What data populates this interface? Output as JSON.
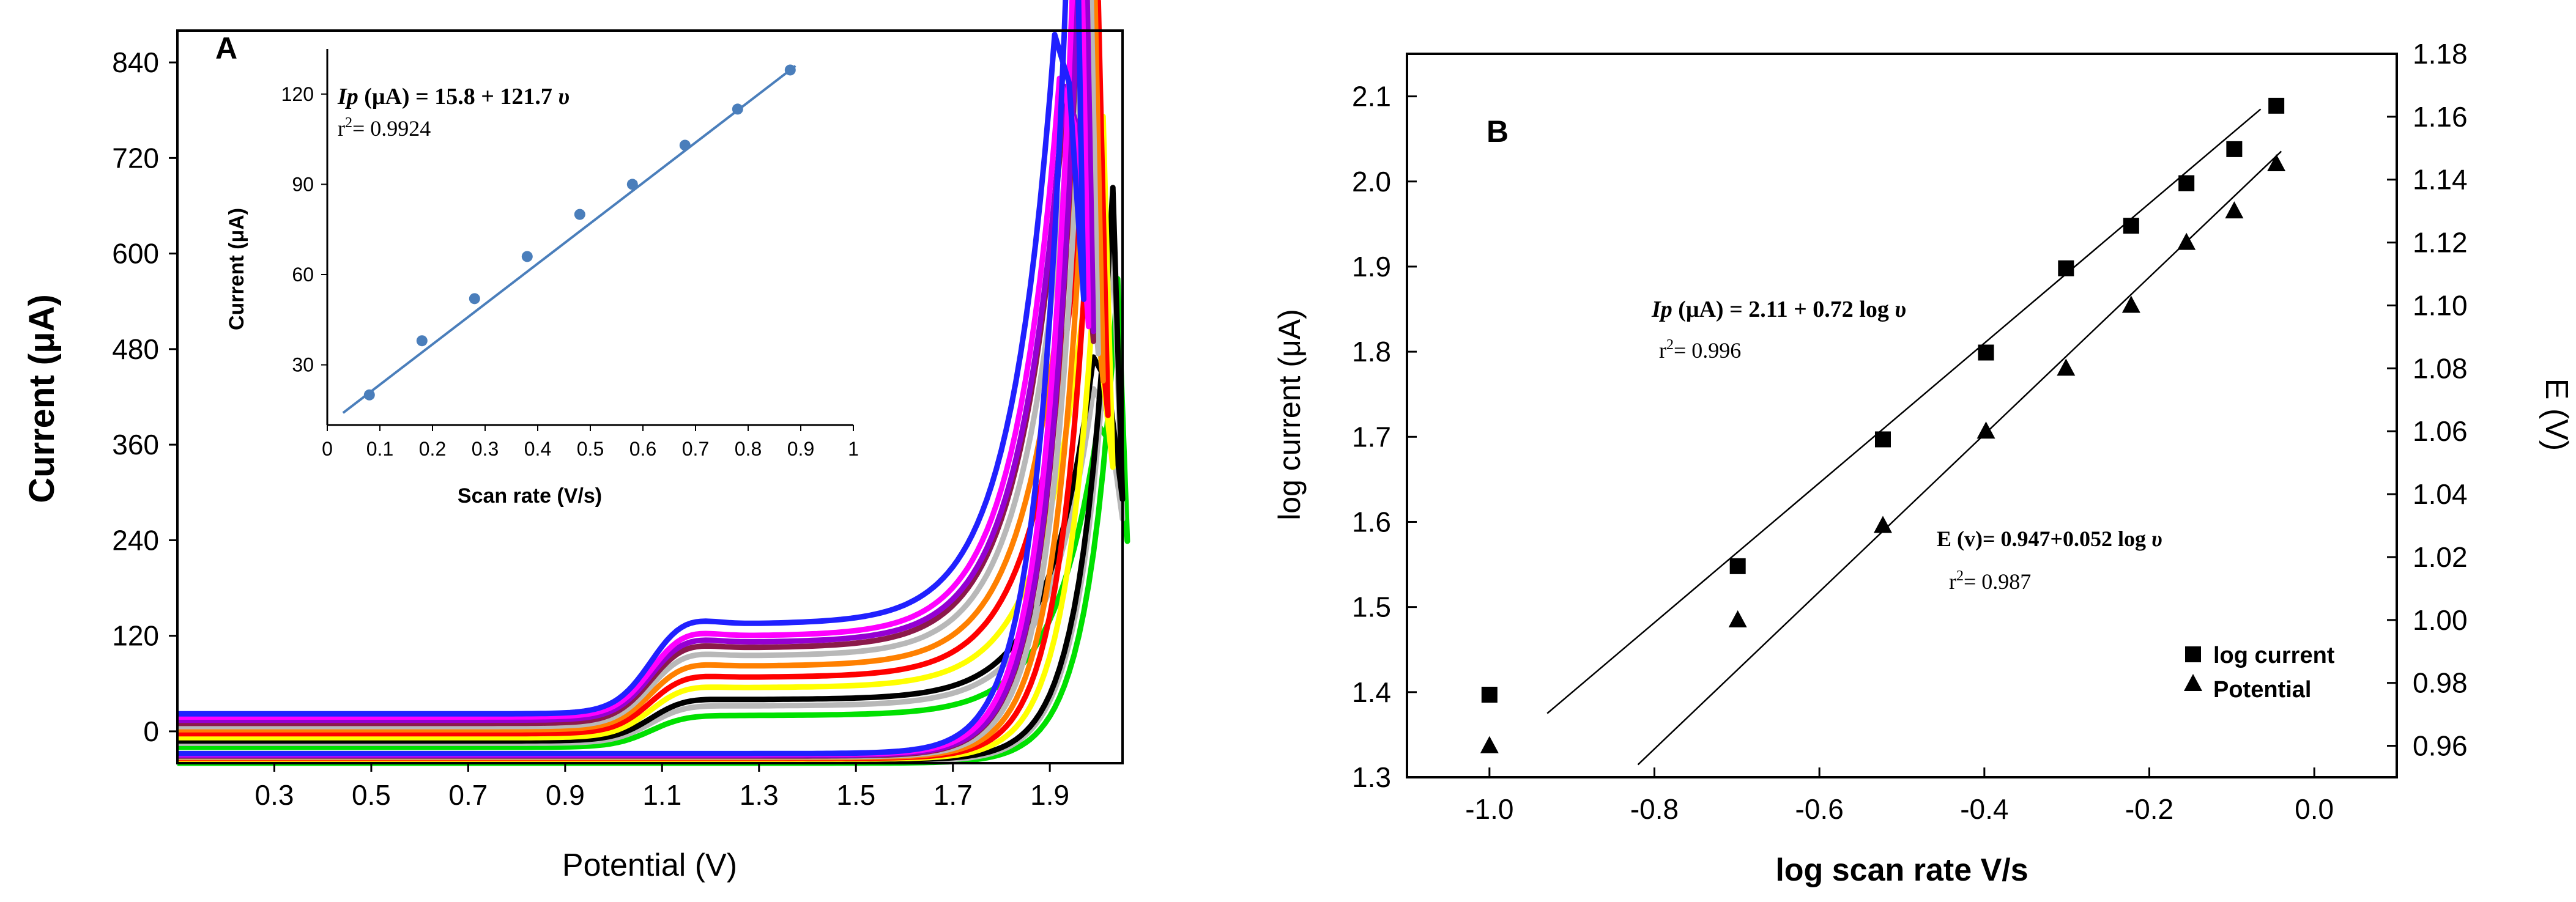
{
  "chart_data": [
    {
      "panel_label": "A",
      "type": "line",
      "xlabel": "Potential (V)",
      "ylabel": "Current (μA)",
      "xlim": [
        0.1,
        2.05
      ],
      "ylim": [
        -40,
        880
      ],
      "xticks": [
        "0.3",
        "0.5",
        "0.7",
        "0.9",
        "1.1",
        "1.3",
        "1.5",
        "1.7",
        "1.9"
      ],
      "yticks": [
        "0",
        "120",
        "240",
        "360",
        "480",
        "600",
        "720",
        "840"
      ],
      "series": [
        {
          "color": "#00e000",
          "base_fwd": -20,
          "base_rev": -40,
          "plateau": 20,
          "peak": 385,
          "peak_x": 2.0
        },
        {
          "color": "#b8b8b8",
          "base_fwd": -15,
          "base_rev": -38,
          "plateau": 32,
          "peak": 430,
          "peak_x": 1.99
        },
        {
          "color": "#000000",
          "base_fwd": -12,
          "base_rev": -36,
          "plateau": 40,
          "peak": 470,
          "peak_x": 1.99
        },
        {
          "color": "#ffff00",
          "base_fwd": -8,
          "base_rev": -35,
          "plateau": 55,
          "peak": 535,
          "peak_x": 1.97
        },
        {
          "color": "#ff0000",
          "base_fwd": -3,
          "base_rev": -34,
          "plateau": 68,
          "peak": 640,
          "peak_x": 1.96
        },
        {
          "color": "#ff8000",
          "base_fwd": 2,
          "base_rev": -33,
          "plateau": 82,
          "peak": 710,
          "peak_x": 1.95
        },
        {
          "color": "#b8b8b8",
          "base_fwd": 6,
          "base_rev": -32,
          "plateau": 95,
          "peak": 765,
          "peak_x": 1.94
        },
        {
          "color": "#8b1a4a",
          "base_fwd": 10,
          "base_rev": -31,
          "plateau": 105,
          "peak": 790,
          "peak_x": 1.93
        },
        {
          "color": "#9400d3",
          "base_fwd": 14,
          "base_rev": -30,
          "plateau": 112,
          "peak": 810,
          "peak_x": 1.93
        },
        {
          "color": "#ff00ff",
          "base_fwd": 18,
          "base_rev": -29,
          "plateau": 120,
          "peak": 820,
          "peak_x": 1.92
        },
        {
          "color": "#2020ff",
          "base_fwd": 22,
          "base_rev": -28,
          "plateau": 135,
          "peak": 875,
          "peak_x": 1.91
        }
      ],
      "inset": {
        "type": "scatter",
        "xlabel": "Scan rate (V/s)",
        "ylabel": "Current (μA)",
        "xlim": [
          0,
          1
        ],
        "ylim": [
          10,
          135
        ],
        "xticks": [
          "0",
          "0.1",
          "0.2",
          "0.3",
          "0.4",
          "0.5",
          "0.6",
          "0.7",
          "0.8",
          "0.9",
          "1"
        ],
        "yticks": [
          "30",
          "60",
          "90",
          "120"
        ],
        "points": [
          [
            0.08,
            20
          ],
          [
            0.18,
            38
          ],
          [
            0.28,
            52
          ],
          [
            0.38,
            66
          ],
          [
            0.48,
            80
          ],
          [
            0.58,
            90
          ],
          [
            0.68,
            103
          ],
          [
            0.78,
            115
          ],
          [
            0.88,
            128
          ]
        ],
        "fit": {
          "intercept": 10,
          "slope": 134.1,
          "x0": 0.03,
          "x1": 0.89
        },
        "equation_lhs": "Ip",
        "equation_rhs": " (μA) = 15.8 + 121.7 ",
        "equation_var": "υ",
        "r2_label": "r",
        "r2_value": "= 0.9924",
        "color": "#4a7ebb"
      }
    },
    {
      "panel_label": "B",
      "type": "scatter",
      "xlabel": "log scan rate V/s",
      "ylabel": "log current  (μA)",
      "y2label": "E (V)",
      "xlim": [
        -1.1,
        0.1
      ],
      "ylim": [
        1.3,
        2.15
      ],
      "y2lim": [
        0.95,
        1.18
      ],
      "xticks": [
        "-1.0",
        "-0.8",
        "-0.6",
        "-0.4",
        "-0.2",
        "0.0"
      ],
      "yticks": [
        "1.3",
        "1.4",
        "1.5",
        "1.6",
        "1.7",
        "1.8",
        "1.9",
        "2.0",
        "2.1"
      ],
      "y2ticks": [
        "0.96",
        "0.98",
        "1.00",
        "1.02",
        "1.04",
        "1.06",
        "1.08",
        "1.10",
        "1.12",
        "1.14",
        "1.16",
        "1.18"
      ],
      "series": [
        {
          "name": "log current",
          "marker": "square",
          "axis": "left",
          "points": [
            [
              -1.0,
              1.397
            ],
            [
              -0.699,
              1.548
            ],
            [
              -0.523,
              1.697
            ],
            [
              -0.398,
              1.799
            ],
            [
              -0.301,
              1.898
            ],
            [
              -0.222,
              1.948
            ],
            [
              -0.155,
              1.998
            ],
            [
              -0.097,
              2.038
            ],
            [
              -0.046,
              2.089
            ]
          ],
          "fit": {
            "x0": -0.93,
            "y0": 1.375,
            "x1": -0.065,
            "y1": 2.085
          }
        },
        {
          "name": "Potential",
          "marker": "triangle",
          "axis": "right",
          "points": [
            [
              -1.0,
              0.96
            ],
            [
              -0.699,
              1.0
            ],
            [
              -0.523,
              1.03
            ],
            [
              -0.398,
              1.06
            ],
            [
              -0.301,
              1.08
            ],
            [
              -0.222,
              1.1
            ],
            [
              -0.155,
              1.12
            ],
            [
              -0.097,
              1.13
            ],
            [
              -0.046,
              1.145
            ]
          ],
          "fit": {
            "x0": -0.82,
            "y0": 0.954,
            "x1": -0.04,
            "y1": 1.149
          }
        }
      ],
      "annotations": {
        "eq1_lhs": "Ip",
        "eq1_rhs": " (μA) = 2.11 + 0.72 log ",
        "eq1_var": "υ",
        "eq1_r2": "= 0.996",
        "eq2_text": "E (v)= 0.947+0.052 log ",
        "eq2_var": "υ",
        "eq2_r2": "= 0.987",
        "r2_label": "r"
      },
      "legend_position": "bottom-right"
    }
  ]
}
